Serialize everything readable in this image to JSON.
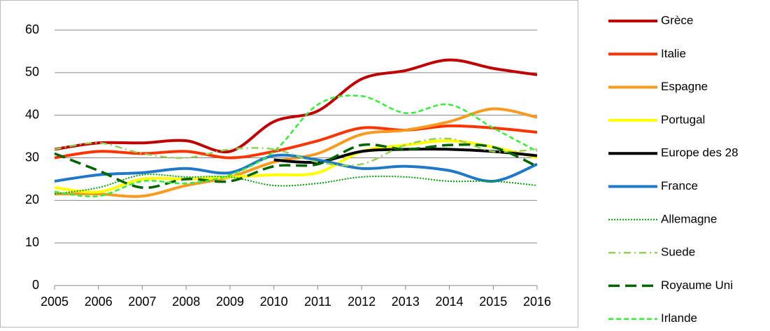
{
  "chart_data": {
    "type": "line",
    "x": [
      2005,
      2006,
      2007,
      2008,
      2009,
      2010,
      2011,
      2012,
      2013,
      2014,
      2015,
      2016
    ],
    "xlim": [
      2005,
      2016
    ],
    "xticks": [
      2005,
      2006,
      2007,
      2008,
      2009,
      2010,
      2011,
      2012,
      2013,
      2014,
      2015,
      2016
    ],
    "ylim": [
      0,
      60
    ],
    "yticks": [
      0,
      10,
      20,
      30,
      40,
      50,
      60
    ],
    "grid": true,
    "legend": "right",
    "series": [
      {
        "name": "Grèce",
        "color": "#c00000",
        "line_style": "solid",
        "values": [
          32,
          33.5,
          33.5,
          34,
          31.5,
          38.5,
          41,
          48.5,
          50.5,
          53,
          51,
          49.5
        ]
      },
      {
        "name": "Italie",
        "color": "#ff3300",
        "line_style": "solid",
        "values": [
          30,
          31.5,
          31,
          31.5,
          30,
          31.5,
          34,
          37,
          36.5,
          37.5,
          37,
          36
        ]
      },
      {
        "name": "Espagne",
        "color": "#f79a20",
        "line_style": "solid",
        "values": [
          21.5,
          21.5,
          21,
          23.5,
          25.5,
          29,
          31,
          35.5,
          36.5,
          38.5,
          41.5,
          39.5
        ]
      },
      {
        "name": "Portugal",
        "color": "#ffff00",
        "line_style": "solid",
        "values": [
          23,
          22,
          25,
          25,
          25.5,
          26,
          26.5,
          31.5,
          33,
          34,
          32.5,
          30
        ]
      },
      {
        "name": "Europe des 28",
        "color": "#000000",
        "line_style": "solid",
        "values": [
          null,
          null,
          null,
          null,
          null,
          29.5,
          29,
          31.5,
          32,
          32,
          31.5,
          30.5
        ]
      },
      {
        "name": "France",
        "color": "#1f78c8",
        "line_style": "solid",
        "values": [
          24.5,
          26,
          26.5,
          27.5,
          26.5,
          30.5,
          29.5,
          27.5,
          28,
          27,
          24.5,
          28.5
        ]
      },
      {
        "name": "Allemagne",
        "color": "#00a000",
        "line_style": "dotted",
        "values": [
          21.5,
          23,
          26,
          25.5,
          25.5,
          23.5,
          24,
          25.5,
          25.5,
          24.5,
          24.5,
          23.5
        ]
      },
      {
        "name": "Suede",
        "color": "#92d050",
        "line_style": "dashdot",
        "values": [
          32,
          33.5,
          31,
          30,
          32,
          32,
          29,
          28.5,
          33,
          34.5,
          31.5,
          32
        ]
      },
      {
        "name": "Royaume Uni",
        "color": "#006400",
        "line_style": "dashed",
        "values": [
          31,
          27,
          23,
          25,
          24.5,
          28,
          28.5,
          33,
          32,
          33,
          32.5,
          28
        ]
      },
      {
        "name": "Irlande",
        "color": "#33ee33",
        "line_style": "shortdash",
        "values": [
          22,
          21,
          24.5,
          24,
          26,
          31.5,
          42.5,
          44.5,
          40.5,
          42.5,
          37,
          31.5
        ]
      }
    ]
  }
}
